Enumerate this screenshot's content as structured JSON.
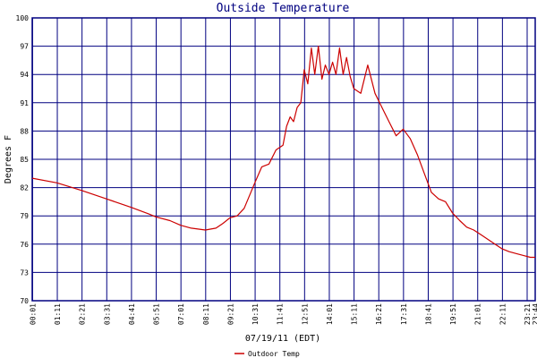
{
  "chart_data": {
    "type": "line",
    "title": "Outside Temperature",
    "xlabel": "07/19/11 (EDT)",
    "ylabel": "Degrees F",
    "ylim": [
      70,
      100
    ],
    "yticks": [
      "70",
      "73",
      "76",
      "79",
      "82",
      "85",
      "88",
      "91",
      "94",
      "97",
      "100"
    ],
    "xticks": [
      "00:01",
      "01:11",
      "02:21",
      "03:31",
      "04:41",
      "05:51",
      "07:01",
      "08:11",
      "09:21",
      "10:31",
      "11:41",
      "12:51",
      "14:01",
      "15:11",
      "16:21",
      "17:31",
      "18:41",
      "19:51",
      "21:01",
      "22:11",
      "23:21",
      "23:44"
    ],
    "grid": true,
    "legend_position": "bottom-left",
    "colors": {
      "line": "#cc0000",
      "grid": "#000080",
      "title": "#000080"
    },
    "series": [
      {
        "name": "Outdoor Temp",
        "x_hours": [
          0.0,
          1.17,
          2.33,
          3.5,
          4.67,
          5.5,
          5.83,
          6.5,
          7.0,
          7.5,
          8.17,
          8.67,
          9.0,
          9.33,
          9.67,
          10.0,
          10.5,
          10.83,
          11.17,
          11.5,
          11.83,
          12.0,
          12.17,
          12.33,
          12.5,
          12.67,
          12.83,
          13.0,
          13.17,
          13.33,
          13.5,
          13.67,
          13.83,
          14.0,
          14.17,
          14.33,
          14.5,
          14.67,
          14.83,
          15.0,
          15.17,
          15.5,
          15.83,
          16.17,
          16.5,
          16.83,
          17.17,
          17.5,
          17.83,
          18.17,
          18.5,
          18.83,
          19.17,
          19.5,
          19.83,
          20.17,
          20.5,
          20.83,
          21.17,
          21.5,
          21.83,
          22.17,
          22.5,
          22.83,
          23.17,
          23.5,
          23.73
        ],
        "values": [
          83.0,
          82.5,
          81.7,
          80.8,
          79.9,
          79.2,
          78.9,
          78.5,
          78.0,
          77.7,
          77.5,
          77.7,
          78.2,
          78.8,
          79.0,
          79.8,
          82.5,
          84.2,
          84.5,
          86.0,
          86.5,
          88.5,
          89.5,
          89.0,
          90.5,
          91.0,
          94.5,
          93.0,
          96.8,
          94.0,
          97.0,
          93.5,
          95.0,
          94.0,
          95.3,
          94.0,
          96.8,
          94.0,
          95.8,
          93.8,
          92.5,
          92.0,
          95.0,
          92.0,
          90.5,
          89.0,
          87.5,
          88.2,
          87.2,
          85.5,
          83.5,
          81.5,
          80.8,
          80.5,
          79.3,
          78.5,
          77.8,
          77.5,
          77.0,
          76.5,
          76.0,
          75.5,
          75.2,
          75.0,
          74.8,
          74.6,
          74.6
        ]
      }
    ]
  }
}
